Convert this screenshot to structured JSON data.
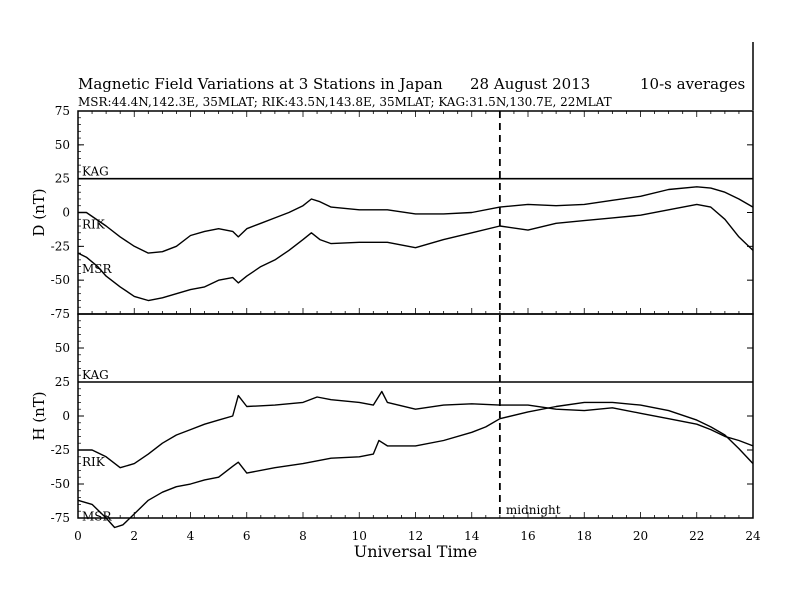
{
  "title": {
    "main": "Magnetic Field Variations at 3 Stations in Japan",
    "date": "28  August  2013",
    "averaging": "10-s averages",
    "stations": "MSR:44.4N,142.3E, 35MLAT;  RIK:43.5N,143.8E, 35MLAT;  KAG:31.5N,130.7E, 22MLAT"
  },
  "chart_data": [
    {
      "type": "line",
      "panel": "D",
      "ylabel": "D (nT)",
      "ylim": [
        -75,
        75
      ],
      "yticks": [
        75,
        50,
        25,
        0,
        -25,
        -50,
        -75
      ],
      "xlim": [
        0,
        24
      ],
      "series": [
        {
          "name": "KAG",
          "x": [
            0,
            24
          ],
          "y": [
            25,
            25
          ]
        },
        {
          "name": "RIK",
          "x": [
            0,
            0.3,
            1,
            1.5,
            2,
            2.5,
            3,
            3.5,
            4,
            4.5,
            5,
            5.5,
            5.7,
            6,
            6.5,
            7,
            7.5,
            8,
            8.3,
            8.6,
            9,
            10,
            11,
            12,
            13,
            14,
            15,
            16,
            17,
            18,
            19,
            20,
            21,
            22,
            22.5,
            23,
            23.5,
            24
          ],
          "y": [
            0,
            0,
            -10,
            -18,
            -25,
            -30,
            -29,
            -25,
            -17,
            -14,
            -12,
            -14,
            -18,
            -12,
            -8,
            -4,
            0,
            5,
            10,
            8,
            4,
            2,
            2,
            -1,
            -1,
            0,
            4,
            6,
            5,
            6,
            9,
            12,
            17,
            19,
            18,
            15,
            10,
            4
          ]
        },
        {
          "name": "MSR",
          "x": [
            0,
            0.3,
            0.7,
            1,
            1.5,
            2,
            2.5,
            3,
            3.5,
            4,
            4.5,
            5,
            5.5,
            5.7,
            6,
            6.5,
            7,
            7.5,
            8,
            8.3,
            8.6,
            9,
            10,
            11,
            12,
            13,
            14,
            15,
            16,
            17,
            18,
            19,
            20,
            21,
            22,
            22.5,
            23,
            23.5,
            24
          ],
          "y": [
            -30,
            -33,
            -40,
            -47,
            -55,
            -62,
            -65,
            -63,
            -60,
            -57,
            -55,
            -50,
            -48,
            -52,
            -47,
            -40,
            -35,
            -28,
            -20,
            -15,
            -20,
            -23,
            -22,
            -22,
            -26,
            -20,
            -15,
            -10,
            -13,
            -8,
            -6,
            -4,
            -2,
            2,
            6,
            4,
            -5,
            -18,
            -28
          ]
        }
      ]
    },
    {
      "type": "line",
      "panel": "H",
      "ylabel": "H (nT)",
      "ylim": [
        -75,
        75
      ],
      "yticks": [
        75,
        50,
        25,
        0,
        -25,
        -50,
        -75
      ],
      "xlim": [
        0,
        24
      ],
      "xlabel": "Universal Time",
      "xticks": [
        0,
        2,
        4,
        6,
        8,
        10,
        12,
        14,
        16,
        18,
        20,
        22,
        24
      ],
      "annotations": [
        {
          "x": 15,
          "style": "dashed",
          "label": "midnight"
        }
      ],
      "series": [
        {
          "name": "KAG",
          "x": [
            0,
            24
          ],
          "y": [
            25,
            25
          ]
        },
        {
          "name": "RIK",
          "x": [
            0,
            0.5,
            1,
            1.5,
            2,
            2.5,
            3,
            3.5,
            4,
            4.5,
            5,
            5.5,
            5.7,
            6,
            7,
            8,
            8.5,
            9,
            10,
            10.5,
            10.8,
            11,
            12,
            13,
            14,
            15,
            16,
            17,
            18,
            19,
            20,
            21,
            22,
            22.5,
            23,
            23.5,
            24
          ],
          "y": [
            -25,
            -25,
            -30,
            -38,
            -35,
            -28,
            -20,
            -14,
            -10,
            -6,
            -3,
            0,
            15,
            7,
            8,
            10,
            14,
            12,
            10,
            8,
            18,
            10,
            5,
            8,
            9,
            8,
            8,
            5,
            4,
            6,
            2,
            -2,
            -6,
            -10,
            -15,
            -18,
            -22
          ]
        },
        {
          "name": "MSR",
          "x": [
            0,
            0.5,
            1,
            1.3,
            1.6,
            2,
            2.5,
            3,
            3.5,
            4,
            4.5,
            5,
            5.5,
            5.7,
            6,
            7,
            8,
            9,
            10,
            10.5,
            10.7,
            11,
            12,
            13,
            14,
            14.5,
            15,
            16,
            17,
            18,
            19,
            20,
            21,
            22,
            22.5,
            23,
            23.5,
            24
          ],
          "y": [
            -62,
            -65,
            -75,
            -82,
            -80,
            -72,
            -62,
            -56,
            -52,
            -50,
            -47,
            -45,
            -37,
            -34,
            -42,
            -38,
            -35,
            -31,
            -30,
            -28,
            -18,
            -22,
            -22,
            -18,
            -12,
            -8,
            -2,
            3,
            7,
            10,
            10,
            8,
            4,
            -3,
            -8,
            -14,
            -24,
            -35
          ]
        }
      ]
    }
  ]
}
